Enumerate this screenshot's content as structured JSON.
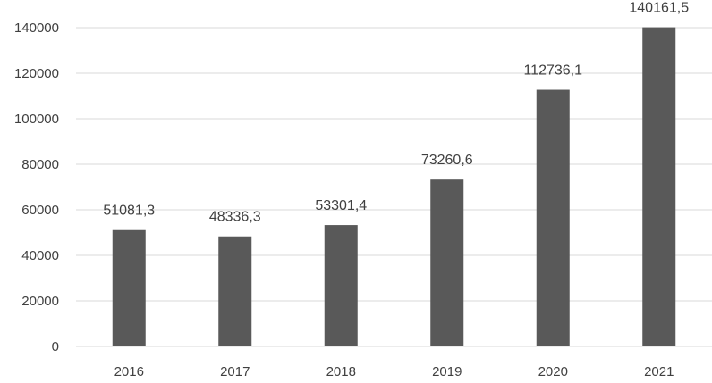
{
  "chart_data": {
    "type": "bar",
    "categories": [
      "2016",
      "2017",
      "2018",
      "2019",
      "2020",
      "2021"
    ],
    "values": [
      51081.3,
      48336.3,
      53301.4,
      73260.6,
      112736.1,
      140161.5
    ],
    "data_labels": [
      "51081,3",
      "48336,3",
      "53301,4",
      "73260,6",
      "112736,1",
      "140161,5"
    ],
    "y_ticks": [
      "0",
      "20000",
      "40000",
      "60000",
      "80000",
      "100000",
      "120000",
      "140000"
    ],
    "ylim": [
      0,
      140000
    ],
    "grid": true,
    "legend": "none",
    "colors": {
      "bar": "#595959",
      "grid": "#d9d9d9",
      "text": "#404040"
    }
  }
}
